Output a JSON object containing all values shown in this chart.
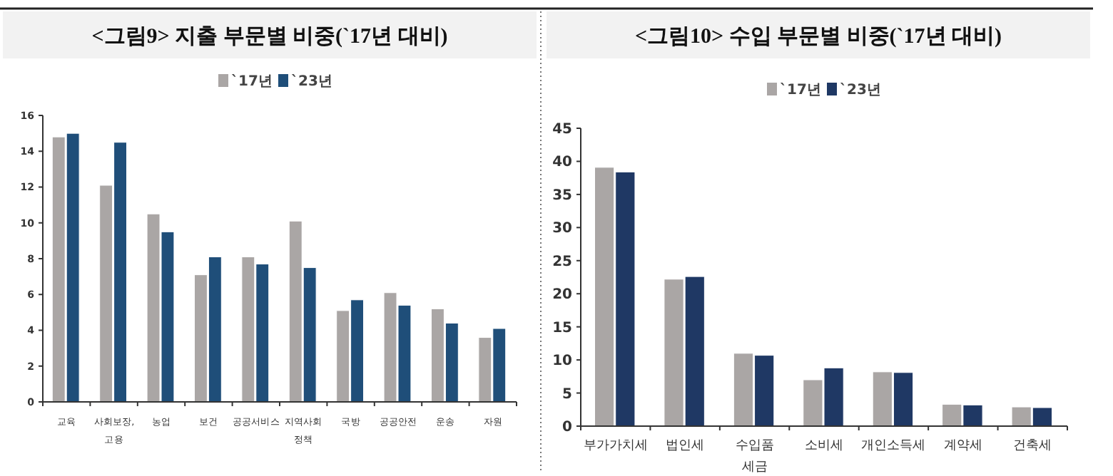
{
  "chart_data": [
    {
      "type": "bar",
      "title": "<그림9> 지출 부문별 비중(`17년 대비)",
      "categories": [
        "교육",
        "사회보장, 고용",
        "농업",
        "보건",
        "공공서비스",
        "지역사회 정책",
        "국방",
        "공공안전",
        "운송",
        "자원"
      ],
      "series": [
        {
          "name": "`17년",
          "color": "#aaa6a5",
          "values": [
            14.8,
            12.1,
            10.5,
            7.1,
            8.1,
            10.1,
            5.1,
            6.1,
            5.2,
            3.6
          ]
        },
        {
          "name": "`23년",
          "color": "#1f4e79",
          "values": [
            15.0,
            14.5,
            9.5,
            8.1,
            7.7,
            7.5,
            5.7,
            5.4,
            4.4,
            4.1
          ]
        }
      ],
      "ylim": [
        0,
        16
      ],
      "yticks": [
        0,
        2,
        4,
        6,
        8,
        10,
        12,
        14,
        16
      ],
      "legend": "top",
      "grid": false
    },
    {
      "type": "bar",
      "title": "<그림10> 수입 부문별 비중(`17년 대비)",
      "categories": [
        "부가가치세",
        "법인세",
        "수입품 세금",
        "소비세",
        "개인소득세",
        "계약세",
        "건축세"
      ],
      "series": [
        {
          "name": "`17년",
          "color": "#aaa6a5",
          "values": [
            39.1,
            22.2,
            11.0,
            7.0,
            8.2,
            3.3,
            2.9
          ]
        },
        {
          "name": "`23년",
          "color": "#1f3864",
          "values": [
            38.4,
            22.6,
            10.7,
            8.8,
            8.1,
            3.2,
            2.8
          ]
        }
      ],
      "ylim": [
        0,
        45
      ],
      "yticks": [
        0,
        5,
        10,
        15,
        20,
        25,
        30,
        35,
        40,
        45
      ],
      "legend": "top",
      "grid": false
    }
  ]
}
